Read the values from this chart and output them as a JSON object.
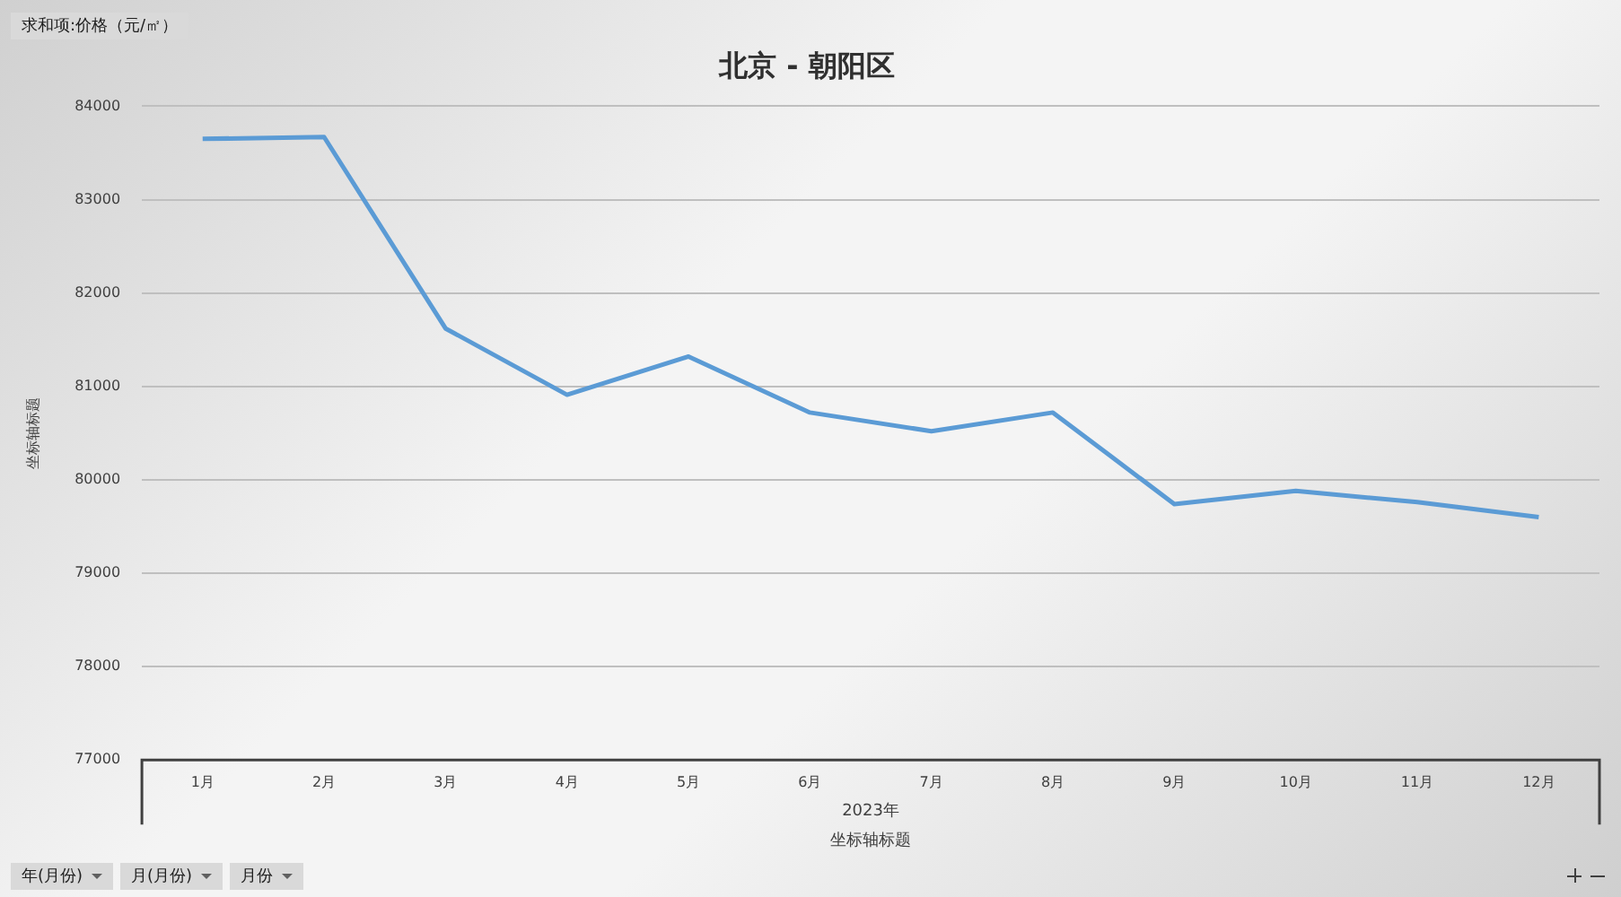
{
  "chart_data": {
    "type": "line",
    "title": "北京 - 朝阳区",
    "xlabel": "坐标轴标题",
    "ylabel": "坐标轴标题",
    "annotations": [
      "求和项:价格（元/㎡）",
      "2023年",
      "年(月份)",
      "月(月份)",
      "月份"
    ],
    "categories": [
      "1月",
      "2月",
      "3月",
      "4月",
      "5月",
      "6月",
      "7月",
      "8月",
      "9月",
      "10月",
      "11月",
      "12月"
    ],
    "series": [
      {
        "color": "#5b9bd5",
        "values": [
          83650,
          83670,
          81620,
          80910,
          81320,
          80720,
          80520,
          80720,
          79740,
          79880,
          79760,
          79600
        ]
      }
    ],
    "ylim": [
      77000,
      84000
    ],
    "yticks": [
      77000,
      78000,
      79000,
      80000,
      81000,
      82000,
      83000,
      84000
    ],
    "grid": "y",
    "legend": false,
    "marker": "none",
    "line_style": "solid"
  }
}
